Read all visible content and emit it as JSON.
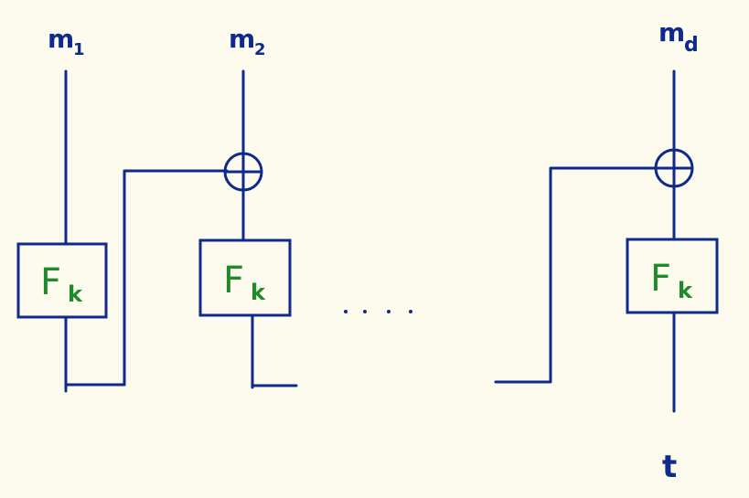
{
  "inputs": {
    "m1": {
      "base": "m",
      "sub": "1"
    },
    "m2": {
      "base": "m",
      "sub": "2"
    },
    "md": {
      "base": "m",
      "sub": "d"
    }
  },
  "blocks": {
    "block1": {
      "base": "F",
      "sub": "k"
    },
    "block2": {
      "base": "F",
      "sub": "k"
    },
    "blockd": {
      "base": "F",
      "sub": "k"
    }
  },
  "output": {
    "tag": "t"
  },
  "colors": {
    "wire": "#0e2a8c",
    "function_label": "#1e8a2a",
    "background": "#fdfaee"
  },
  "icons": {
    "xor": "circled-plus-icon",
    "ellipsis": "ellipsis-icon"
  }
}
